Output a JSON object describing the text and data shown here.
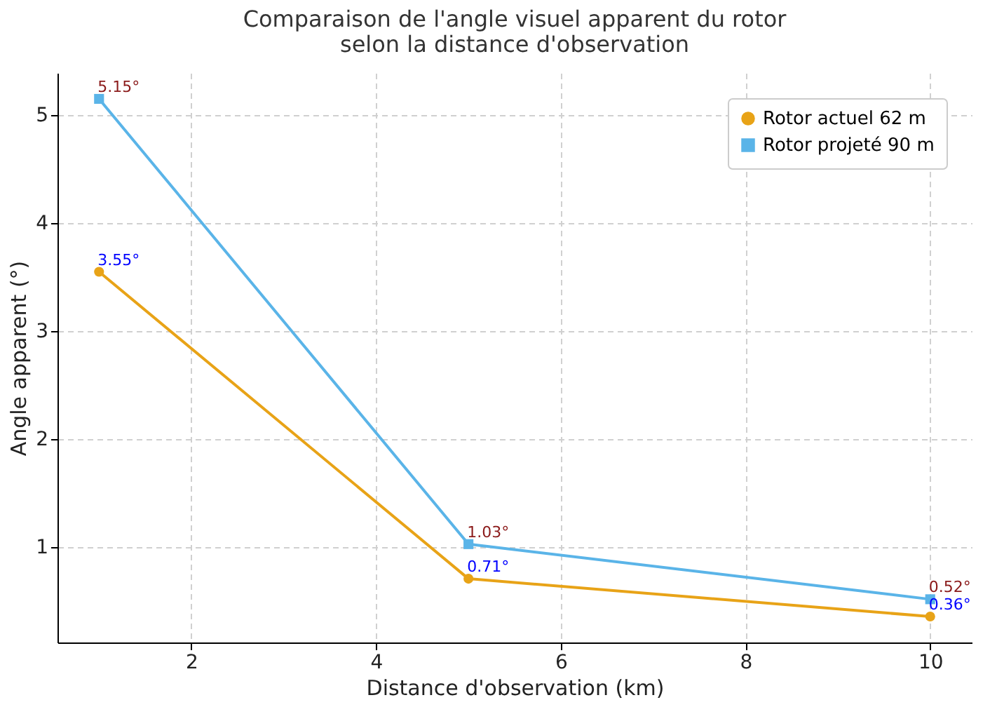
{
  "chart_data": {
    "type": "line",
    "title": "Comparaison de l'angle visuel apparent du rotor\nselon la distance d'observation",
    "xlabel": "Distance d'observation (km)",
    "ylabel": "Angle apparent (°)",
    "x": [
      1,
      5,
      10
    ],
    "series": [
      {
        "name": "Rotor actuel 62 m",
        "color": "#e8a317",
        "marker": "circle",
        "values": [
          3.55,
          0.71,
          0.36
        ],
        "value_labels": [
          "3.55°",
          "0.71°",
          "0.36°"
        ]
      },
      {
        "name": "Rotor projeté 90 m",
        "color": "#5ab4e8",
        "marker": "square",
        "values": [
          5.15,
          1.03,
          0.52
        ],
        "value_labels": [
          "5.15°",
          "1.03°",
          "0.52°"
        ]
      }
    ],
    "xlim": [
      0.55,
      10.45
    ],
    "ylim": [
      0.12,
      5.39
    ],
    "xticks": [
      2,
      4,
      6,
      8,
      10
    ],
    "yticks": [
      1,
      2,
      3,
      4,
      5
    ],
    "grid": true,
    "legend": "top right",
    "line_style": "solid"
  }
}
